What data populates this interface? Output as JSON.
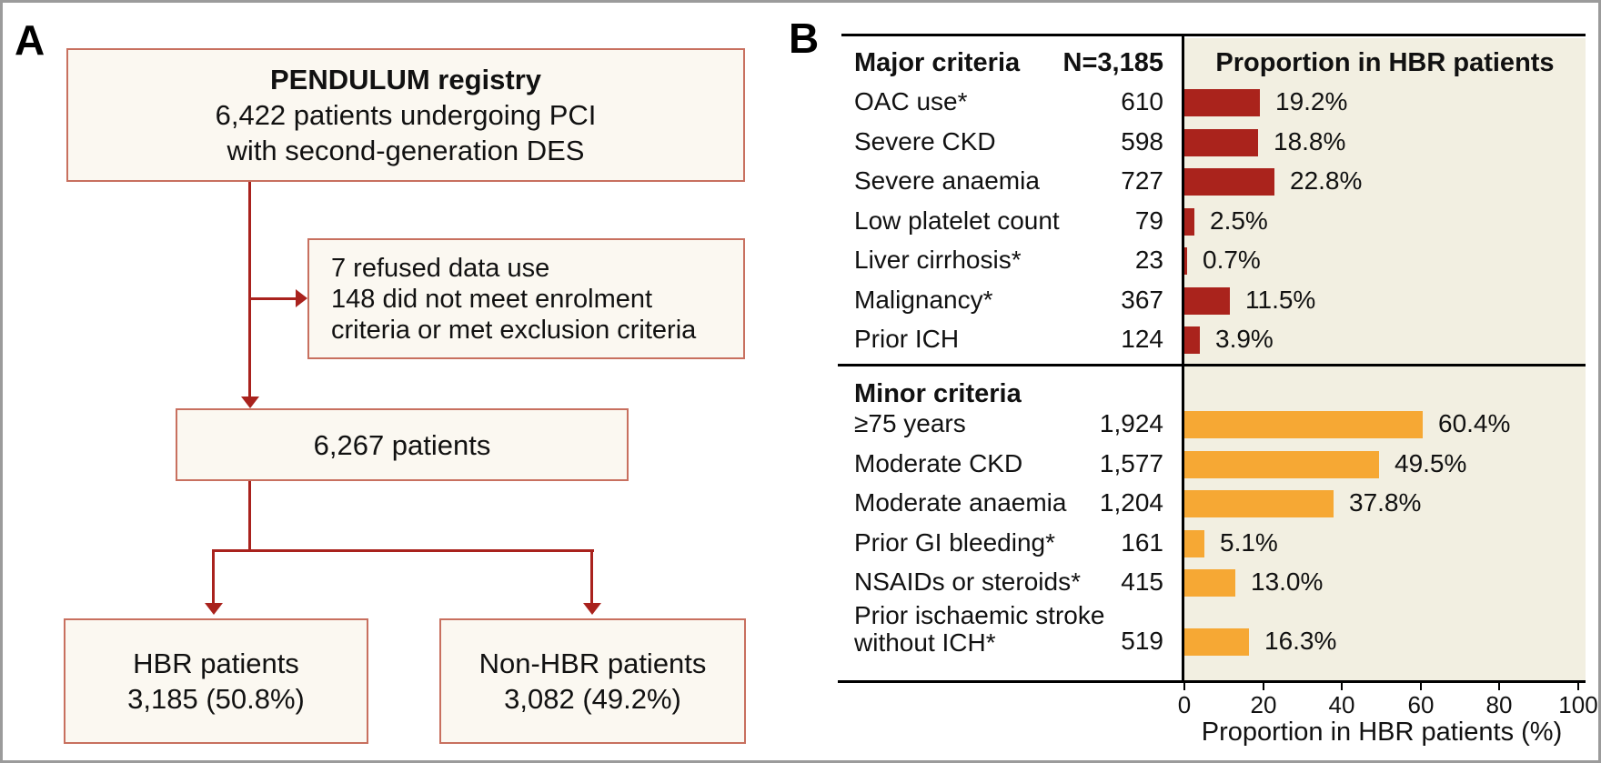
{
  "panel_a": {
    "label": "A",
    "registry": {
      "title": "PENDULUM registry",
      "line1": "6,422 patients undergoing PCI",
      "line2": "with second-generation DES"
    },
    "exclusion": {
      "lines": [
        "7 refused data use",
        "148 did not meet enrolment",
        "criteria or met exclusion criteria"
      ]
    },
    "eligible": {
      "text": "6,267 patients"
    },
    "hbr": {
      "line1": "HBR patients",
      "line2": "3,185 (50.8%)"
    },
    "non_hbr": {
      "line1": "Non-HBR patients",
      "line2": "3,082 (49.2%)"
    }
  },
  "panel_b": {
    "label": "B",
    "chart_data": {
      "type": "bar",
      "orientation": "horizontal",
      "proportion_header": "Proportion in HBR patients",
      "n_header": "N=3,185",
      "xlabel": "Proportion in HBR patients (%)",
      "xlim": [
        0,
        100
      ],
      "xticks": [
        0,
        20,
        40,
        60,
        80,
        100
      ],
      "groups": [
        {
          "name": "Major criteria",
          "bar_color": "#aa231c",
          "rows": [
            {
              "label": "OAC use*",
              "n": "610",
              "pct": 19.2,
              "pct_label": "19.2%"
            },
            {
              "label": "Severe CKD",
              "n": "598",
              "pct": 18.8,
              "pct_label": "18.8%"
            },
            {
              "label": "Severe anaemia",
              "n": "727",
              "pct": 22.8,
              "pct_label": "22.8%"
            },
            {
              "label": "Low platelet count",
              "n": "79",
              "pct": 2.5,
              "pct_label": "2.5%"
            },
            {
              "label": "Liver cirrhosis*",
              "n": "23",
              "pct": 0.7,
              "pct_label": "0.7%"
            },
            {
              "label": "Malignancy*",
              "n": "367",
              "pct": 11.5,
              "pct_label": "11.5%"
            },
            {
              "label": "Prior ICH",
              "n": "124",
              "pct": 3.9,
              "pct_label": "3.9%"
            }
          ]
        },
        {
          "name": "Minor criteria",
          "bar_color": "#f6a834",
          "rows": [
            {
              "label": "≥75 years",
              "n": "1,924",
              "pct": 60.4,
              "pct_label": "60.4%"
            },
            {
              "label": "Moderate CKD",
              "n": "1,577",
              "pct": 49.5,
              "pct_label": "49.5%"
            },
            {
              "label": "Moderate anaemia",
              "n": "1,204",
              "pct": 37.8,
              "pct_label": "37.8%"
            },
            {
              "label": "Prior GI bleeding*",
              "n": "161",
              "pct": 5.1,
              "pct_label": "5.1%"
            },
            {
              "label": "NSAIDs or steroids*",
              "n": "415",
              "pct": 13.0,
              "pct_label": "13.0%"
            },
            {
              "label_lines": [
                "Prior ischaemic stroke",
                "without ICH*"
              ],
              "n": "519",
              "pct": 16.3,
              "pct_label": "16.3%"
            }
          ]
        }
      ]
    }
  },
  "colors": {
    "flow_line_red": "#a9221d",
    "flow_box_border": "#c8705f",
    "flow_box_fill": "#fbf8f1",
    "major_bar_red": "#aa231c",
    "minor_bar_orange": "#f6a834",
    "chart_bg_beige": "#f2efe1",
    "frame_gray": "#9b9b9b",
    "text_black": "#111111"
  }
}
